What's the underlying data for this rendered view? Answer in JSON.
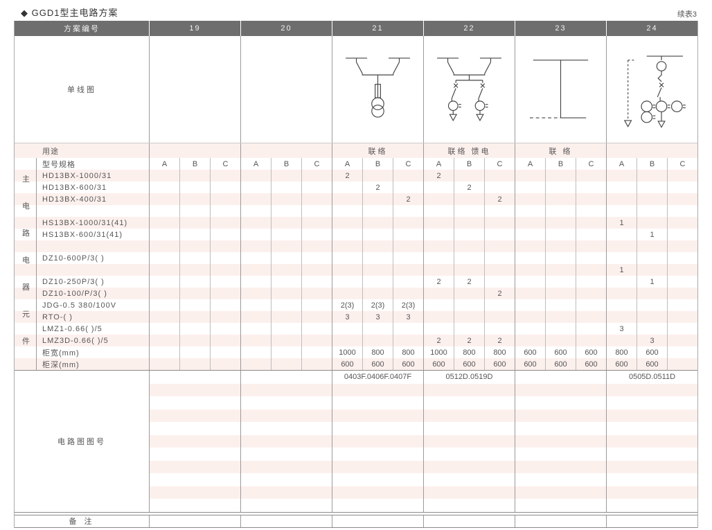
{
  "title": "◆ GGD1型主电路方案",
  "continuation": "续表3",
  "colors": {
    "header_bg": "#6e6e6e",
    "stripe_pink": "#fcf0ed",
    "grid_line": "#9a9a9a",
    "text": "#555555"
  },
  "header": {
    "scheme_label": "方案编号",
    "schemes": [
      "19",
      "20",
      "21",
      "22",
      "23",
      "24"
    ]
  },
  "diagram_row": {
    "label": "单线图",
    "diagrams": [
      {
        "scheme": "19",
        "icon": "none"
      },
      {
        "scheme": "20",
        "icon": "none"
      },
      {
        "scheme": "21",
        "icon": "two-isolators-fuse-voltage-transformer-diagram"
      },
      {
        "scheme": "22",
        "icon": "two-isolators-two-feeder-branches-diagram"
      },
      {
        "scheme": "23",
        "icon": "bus-tie-link-diagram"
      },
      {
        "scheme": "24",
        "icon": "fuse-switch-metering-feeder-diagram"
      }
    ]
  },
  "usage_row": {
    "label": "用途",
    "values": [
      "",
      "",
      "联络",
      "联络 馈电",
      "联 络",
      ""
    ]
  },
  "side_label": "主电路电器元件",
  "side_label_chars": [
    "主",
    "电",
    "路",
    "电",
    "器",
    "元",
    "件"
  ],
  "spec_table": {
    "subheader_label": "型号规格",
    "subheader_cells": [
      "A",
      "B",
      "C",
      "A",
      "B",
      "C",
      "A",
      "B",
      "C",
      "A",
      "B",
      "C",
      "A",
      "B",
      "C",
      "A",
      "B",
      "C"
    ],
    "rows": [
      {
        "label": "HD13BX-1000/31",
        "cells": [
          "",
          "",
          "",
          "",
          "",
          "",
          "2",
          "",
          "",
          "2",
          "",
          "",
          "",
          "",
          "",
          "",
          "",
          ""
        ]
      },
      {
        "label": "HD13BX-600/31",
        "cells": [
          "",
          "",
          "",
          "",
          "",
          "",
          "",
          "2",
          "",
          "",
          "2",
          "",
          "",
          "",
          "",
          "",
          "",
          ""
        ]
      },
      {
        "label": "HD13BX-400/31",
        "cells": [
          "",
          "",
          "",
          "",
          "",
          "",
          "",
          "",
          "2",
          "",
          "",
          "2",
          "",
          "",
          "",
          "",
          "",
          ""
        ]
      },
      {
        "label": "",
        "cells": [
          "",
          "",
          "",
          "",
          "",
          "",
          "",
          "",
          "",
          "",
          "",
          "",
          "",
          "",
          "",
          "",
          "",
          ""
        ]
      },
      {
        "label": "HS13BX-1000/31(41)",
        "cells": [
          "",
          "",
          "",
          "",
          "",
          "",
          "",
          "",
          "",
          "",
          "",
          "",
          "",
          "",
          "",
          "1",
          "",
          ""
        ]
      },
      {
        "label": "HS13BX-600/31(41)",
        "cells": [
          "",
          "",
          "",
          "",
          "",
          "",
          "",
          "",
          "",
          "",
          "",
          "",
          "",
          "",
          "",
          "",
          "1",
          ""
        ]
      },
      {
        "label": "",
        "cells": [
          "",
          "",
          "",
          "",
          "",
          "",
          "",
          "",
          "",
          "",
          "",
          "",
          "",
          "",
          "",
          "",
          "",
          ""
        ]
      },
      {
        "label": "DZ10-600P/3(  )",
        "cells": [
          "",
          "",
          "",
          "",
          "",
          "",
          "",
          "",
          "",
          "",
          "",
          "",
          "",
          "",
          "",
          "",
          "",
          ""
        ]
      },
      {
        "label": "",
        "cells": [
          "",
          "",
          "",
          "",
          "",
          "",
          "",
          "",
          "",
          "",
          "",
          "",
          "",
          "",
          "",
          "1",
          "",
          ""
        ]
      },
      {
        "label": "DZ10-250P/3(  )",
        "cells": [
          "",
          "",
          "",
          "",
          "",
          "",
          "",
          "",
          "",
          "2",
          "2",
          "",
          "",
          "",
          "",
          "",
          "1",
          ""
        ]
      },
      {
        "label": "DZ10-100/P/3(  )",
        "cells": [
          "",
          "",
          "",
          "",
          "",
          "",
          "",
          "",
          "",
          "",
          "",
          "2",
          "",
          "",
          "",
          "",
          "",
          ""
        ]
      },
      {
        "label": "JDG-0.5 380/100V",
        "cells": [
          "",
          "",
          "",
          "",
          "",
          "",
          "2(3)",
          "2(3)",
          "2(3)",
          "",
          "",
          "",
          "",
          "",
          "",
          "",
          "",
          ""
        ]
      },
      {
        "label": "RTO-(  )",
        "cells": [
          "",
          "",
          "",
          "",
          "",
          "",
          "3",
          "3",
          "3",
          "",
          "",
          "",
          "",
          "",
          "",
          "",
          "",
          ""
        ]
      },
      {
        "label": "LMZ1-0.66(  )/5",
        "cells": [
          "",
          "",
          "",
          "",
          "",
          "",
          "",
          "",
          "",
          "",
          "",
          "",
          "",
          "",
          "",
          "3",
          "",
          ""
        ]
      },
      {
        "label": "LMZ3D-0.66(  )/5",
        "cells": [
          "",
          "",
          "",
          "",
          "",
          "",
          "",
          "",
          "",
          "2",
          "2",
          "2",
          "",
          "",
          "",
          "",
          "3",
          ""
        ]
      }
    ],
    "width_row": {
      "label": "柜宽(mm)",
      "cells": [
        "",
        "",
        "",
        "",
        "",
        "",
        "1000",
        "800",
        "800",
        "1000",
        "800",
        "800",
        "600",
        "600",
        "600",
        "800",
        "600",
        ""
      ]
    },
    "depth_row": {
      "label": "柜深(mm)",
      "cells": [
        "",
        "",
        "",
        "",
        "",
        "",
        "600",
        "600",
        "600",
        "600",
        "600",
        "600",
        "600",
        "600",
        "600",
        "600",
        "600",
        ""
      ]
    }
  },
  "figure_section": {
    "label": "电路图图号",
    "values": [
      "",
      "",
      "0403F.0406F.0407F",
      "0512D.0519D",
      "",
      "0505D.0511D"
    ],
    "empty_rows": 10
  },
  "remark_row": {
    "label": "备 注"
  }
}
